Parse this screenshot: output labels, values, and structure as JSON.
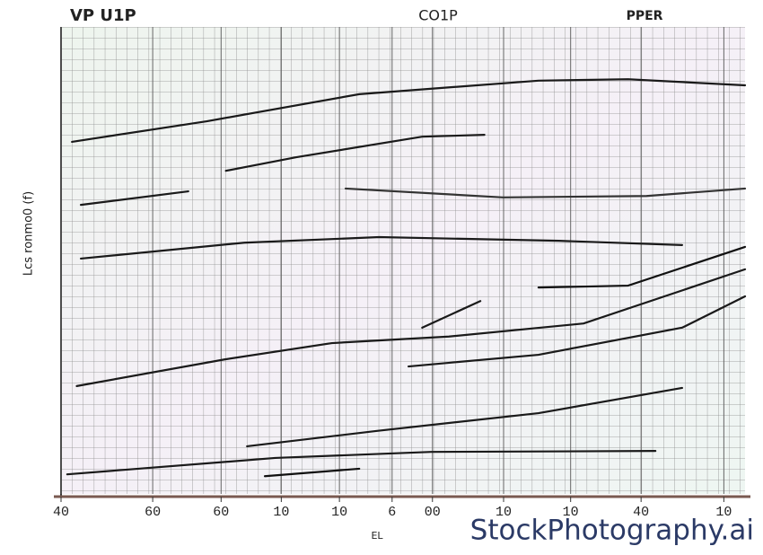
{
  "chart_data": {
    "type": "line",
    "title": "CO1P",
    "annotations": [
      "VP U1P",
      "PPER"
    ],
    "xlabel": "EL",
    "ylabel": "Lcs ronmo0 (f)",
    "xlim": [
      0,
      100
    ],
    "ylim": [
      0,
      100
    ],
    "xticks": [
      {
        "value": 0,
        "label": "40"
      },
      {
        "value": 13.4,
        "label": "60"
      },
      {
        "value": 23.4,
        "label": "60"
      },
      {
        "value": 32.2,
        "label": "10"
      },
      {
        "value": 40.7,
        "label": "10"
      },
      {
        "value": 48.4,
        "label": "6"
      },
      {
        "value": 54.3,
        "label": "00"
      },
      {
        "value": 64.7,
        "label": "10"
      },
      {
        "value": 74.5,
        "label": "10"
      },
      {
        "value": 84.8,
        "label": "40"
      },
      {
        "value": 96.9,
        "label": "10"
      }
    ],
    "grid": true,
    "series": [
      {
        "color": "#1a1a1a",
        "x": [
          1.6,
          21.3,
          43.6,
          69.8,
          82.9,
          100
        ],
        "values": [
          75.4,
          79.8,
          85.6,
          88.5,
          88.8,
          87.5
        ]
      },
      {
        "color": "#1a1a1a",
        "x": [
          24.1,
          34.4,
          52.8,
          61.9
        ],
        "values": [
          69.2,
          72.1,
          76.5,
          76.9
        ]
      },
      {
        "color": "#1a1a1a",
        "x": [
          2.9,
          18.6
        ],
        "values": [
          61.9,
          64.8
        ]
      },
      {
        "color": "#333333",
        "x": [
          41.6,
          64.6,
          85.6,
          100
        ],
        "values": [
          65.4,
          63.5,
          63.8,
          65.4
        ]
      },
      {
        "color": "#1a1a1a",
        "x": [
          2.9,
          26.8,
          46.5,
          72.8,
          90.8
        ],
        "values": [
          50.4,
          53.8,
          55,
          54.2,
          53.3
        ]
      },
      {
        "color": "#111111",
        "x": [
          69.8,
          82.9,
          100
        ],
        "values": [
          44.2,
          44.6,
          52.9
        ]
      },
      {
        "color": "#1a1a1a",
        "x": [
          52.8,
          61.3
        ],
        "values": [
          35.6,
          41.3
        ]
      },
      {
        "color": "#1a1a1a",
        "x": [
          2.3,
          23.9,
          39.6,
          56.7,
          76.4,
          100
        ],
        "values": [
          23.1,
          28.8,
          32.3,
          33.7,
          36.5,
          48.1
        ]
      },
      {
        "color": "#1a1a1a",
        "x": [
          50.8,
          69.8,
          90.8,
          100
        ],
        "values": [
          27.3,
          29.8,
          35.6,
          42.3
        ]
      },
      {
        "color": "#1a1a1a",
        "x": [
          27.2,
          46.2,
          69.8,
          90.8
        ],
        "values": [
          10.2,
          13.5,
          17.3,
          22.7
        ]
      },
      {
        "color": "#1a1a1a",
        "x": [
          0.9,
          31.3,
          54.1,
          86.9
        ],
        "values": [
          4.2,
          7.7,
          9,
          9.2
        ]
      },
      {
        "color": "#111111",
        "x": [
          29.8,
          43.6
        ],
        "values": [
          3.8,
          5.4
        ]
      }
    ]
  },
  "watermark": "StockPhotography.ai"
}
